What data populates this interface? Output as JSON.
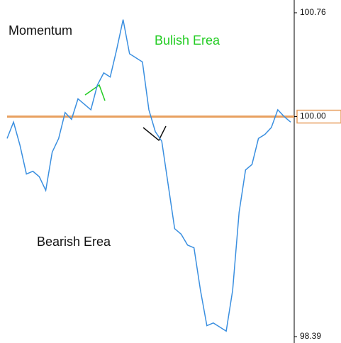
{
  "chart_data": {
    "type": "line",
    "annotations": [
      "Momentum",
      "Bulish Erea",
      "Bearish Erea"
    ],
    "categories": [
      null,
      null,
      null,
      null,
      null,
      null,
      null,
      null,
      null,
      null,
      null,
      null,
      null,
      null,
      null,
      null,
      null,
      null,
      null,
      null,
      null,
      null,
      null,
      null,
      null,
      null,
      null,
      null,
      null,
      null,
      null,
      null,
      null,
      null,
      null,
      null,
      null,
      null,
      null,
      null,
      null,
      null,
      null,
      null,
      null
    ],
    "series": [
      {
        "color": "#3a8fe0",
        "values": [
          99.84,
          99.96,
          99.79,
          99.58,
          99.6,
          99.56,
          99.46,
          99.74,
          99.84,
          100.03,
          99.98,
          100.13,
          100.09,
          100.05,
          100.23,
          100.32,
          100.29,
          100.49,
          100.71,
          100.46,
          100.43,
          100.4,
          100.05,
          99.89,
          99.82,
          99.5,
          99.18,
          99.14,
          99.06,
          99.04,
          98.73,
          98.47,
          98.49,
          98.46,
          98.43,
          98.73,
          99.3,
          99.61,
          99.65,
          99.84,
          99.87,
          99.92,
          100.05,
          100.0,
          99.96
        ]
      }
    ],
    "reference_line": {
      "value": 100,
      "color": "#e8a060"
    },
    "ylim": [
      98.39,
      100.76
    ],
    "yticks": [
      98.39,
      {
        "value": 100,
        "label": "100.00"
      },
      100.76
    ],
    "grid": false
  }
}
